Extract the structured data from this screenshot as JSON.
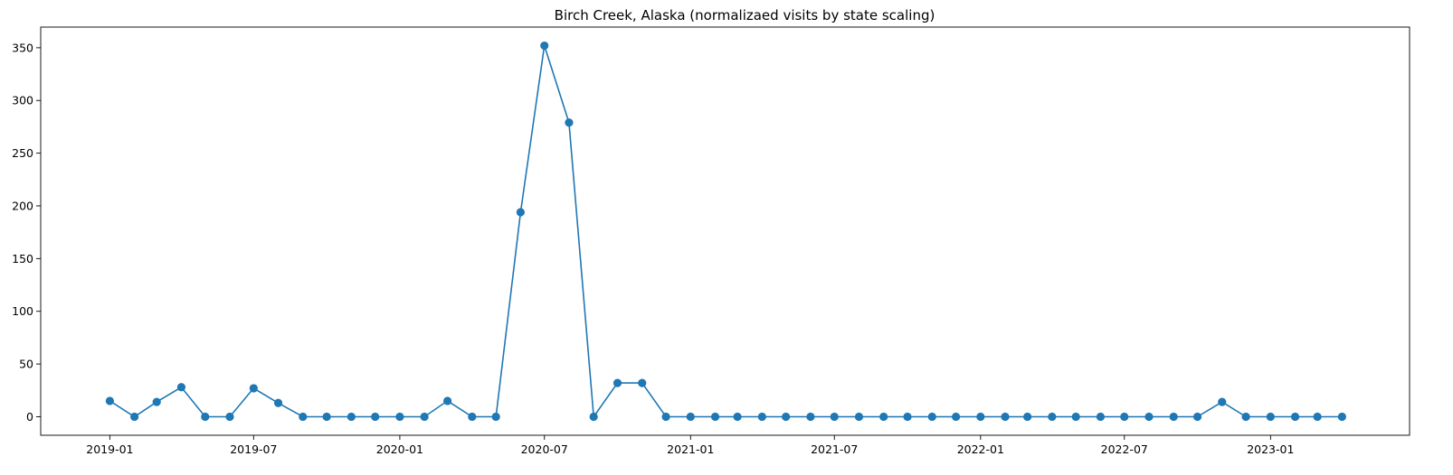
{
  "chart_data": {
    "type": "line",
    "title": "Birch Creek, Alaska (normalizaed visits by state scaling)",
    "xlabel": "",
    "ylabel": "",
    "x_range": [
      "2018-10-06",
      "2023-06-25"
    ],
    "ylim": [
      -17.6,
      369.6
    ],
    "grid": false,
    "legend": "none",
    "color": "#1f77b4",
    "marker": "circle",
    "x_ticks": [
      {
        "date": "2019-01-01",
        "label": "2019-01"
      },
      {
        "date": "2019-07-01",
        "label": "2019-07"
      },
      {
        "date": "2020-01-01",
        "label": "2020-01"
      },
      {
        "date": "2020-07-01",
        "label": "2020-07"
      },
      {
        "date": "2021-01-01",
        "label": "2021-01"
      },
      {
        "date": "2021-07-01",
        "label": "2021-07"
      },
      {
        "date": "2022-01-01",
        "label": "2022-01"
      },
      {
        "date": "2022-07-01",
        "label": "2022-07"
      },
      {
        "date": "2023-01-01",
        "label": "2023-01"
      }
    ],
    "y_ticks": [
      {
        "value": 0,
        "label": "0"
      },
      {
        "value": 50,
        "label": "50"
      },
      {
        "value": 100,
        "label": "100"
      },
      {
        "value": 150,
        "label": "150"
      },
      {
        "value": 200,
        "label": "200"
      },
      {
        "value": 250,
        "label": "250"
      },
      {
        "value": 300,
        "label": "300"
      },
      {
        "value": 350,
        "label": "350"
      }
    ],
    "series": [
      {
        "x": [
          "2019-01-01",
          "2019-02-01",
          "2019-03-01",
          "2019-04-01",
          "2019-05-01",
          "2019-06-01",
          "2019-07-01",
          "2019-08-01",
          "2019-09-01",
          "2019-10-01",
          "2019-11-01",
          "2019-12-01",
          "2020-01-01",
          "2020-02-01",
          "2020-03-01",
          "2020-04-01",
          "2020-05-01",
          "2020-06-01",
          "2020-07-01",
          "2020-08-01",
          "2020-09-01",
          "2020-10-01",
          "2020-11-01",
          "2020-12-01",
          "2021-01-01",
          "2021-02-01",
          "2021-03-01",
          "2021-04-01",
          "2021-05-01",
          "2021-06-01",
          "2021-07-01",
          "2021-08-01",
          "2021-09-01",
          "2021-10-01",
          "2021-11-01",
          "2021-12-01",
          "2022-01-01",
          "2022-02-01",
          "2022-03-01",
          "2022-04-01",
          "2022-05-01",
          "2022-06-01",
          "2022-07-01",
          "2022-08-01",
          "2022-09-01",
          "2022-10-01",
          "2022-11-01",
          "2022-12-01",
          "2023-01-01",
          "2023-02-01",
          "2023-03-01",
          "2023-04-01"
        ],
        "values": [
          15,
          0,
          14,
          28,
          0,
          0,
          27,
          13,
          0,
          0,
          0,
          0,
          0,
          0,
          15,
          0,
          0,
          194,
          352,
          279,
          0,
          32,
          32,
          0,
          0,
          0,
          0,
          0,
          0,
          0,
          0,
          0,
          0,
          0,
          0,
          0,
          0,
          0,
          0,
          0,
          0,
          0,
          0,
          0,
          0,
          0,
          14,
          0,
          0,
          0,
          0,
          0
        ]
      }
    ]
  }
}
